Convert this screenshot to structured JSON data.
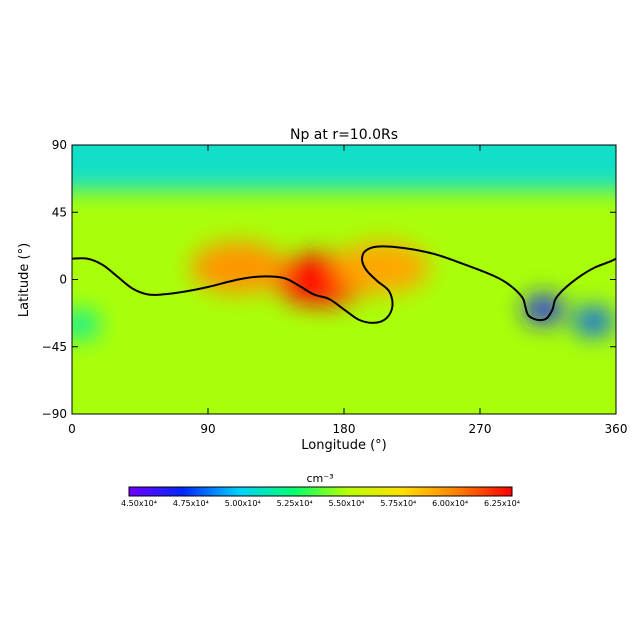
{
  "chart_data": {
    "type": "heatmap",
    "title": "Np at r=10.0Rs",
    "xlabel": "Longitude (°)",
    "ylabel": "Latitude (°)",
    "xlim": [
      0,
      360
    ],
    "ylim": [
      -90,
      90
    ],
    "x_ticks": [
      "0",
      "90",
      "180",
      "270",
      "360"
    ],
    "y_ticks": [
      "90",
      "45",
      "0",
      "−45",
      "−90"
    ],
    "colorbar": {
      "unit_label": "cm⁻³",
      "range": [
        45000,
        63750
      ],
      "tick_labels": [
        "4.50x10⁴",
        "4.75x10⁴",
        "5.00x10⁴",
        "5.25x10⁴",
        "5.50x10⁴",
        "5.75x10⁴",
        "6.00x10⁴",
        "6.25x10⁴"
      ],
      "colormap": [
        "#7000ff",
        "#0028ff",
        "#00d0ff",
        "#00ff70",
        "#b8ff00",
        "#ffe000",
        "#ff8000",
        "#ff0000"
      ]
    },
    "background_level": 55500,
    "features": [
      {
        "kind": "polar-band",
        "lat_range": [
          60,
          90
        ],
        "value": 51000
      },
      {
        "kind": "high-density-region",
        "lon": 165,
        "lat": 0,
        "value": 63500
      },
      {
        "kind": "high-density-region",
        "lon": 110,
        "lat": 8,
        "value": 60500
      },
      {
        "kind": "high-density-region",
        "lon": 205,
        "lat": 8,
        "value": 60000
      },
      {
        "kind": "low-density-region",
        "lon": 312,
        "lat": -20,
        "value": 47000
      },
      {
        "kind": "low-density-region",
        "lon": 345,
        "lat": -28,
        "value": 48500
      },
      {
        "kind": "low-density-region",
        "lon": 5,
        "lat": -30,
        "value": 52000
      }
    ],
    "neutral_line": [
      [
        0,
        14
      ],
      [
        10,
        14
      ],
      [
        20,
        10
      ],
      [
        30,
        2
      ],
      [
        40,
        -6
      ],
      [
        50,
        -10
      ],
      [
        60,
        -10
      ],
      [
        75,
        -8
      ],
      [
        90,
        -5
      ],
      [
        110,
        0
      ],
      [
        125,
        2
      ],
      [
        140,
        1
      ],
      [
        150,
        -4
      ],
      [
        160,
        -10
      ],
      [
        170,
        -13
      ],
      [
        180,
        -20
      ],
      [
        190,
        -27
      ],
      [
        200,
        -29
      ],
      [
        208,
        -26
      ],
      [
        212,
        -18
      ],
      [
        210,
        -8
      ],
      [
        202,
        -1
      ],
      [
        195,
        6
      ],
      [
        192,
        13
      ],
      [
        194,
        19
      ],
      [
        202,
        22
      ],
      [
        220,
        21
      ],
      [
        240,
        17
      ],
      [
        260,
        10
      ],
      [
        280,
        2
      ],
      [
        290,
        -4
      ],
      [
        298,
        -12
      ],
      [
        300,
        -18
      ],
      [
        302,
        -24
      ],
      [
        308,
        -27
      ],
      [
        314,
        -26
      ],
      [
        318,
        -20
      ],
      [
        320,
        -13
      ],
      [
        326,
        -6
      ],
      [
        336,
        2
      ],
      [
        346,
        8
      ],
      [
        356,
        12
      ],
      [
        360,
        14
      ]
    ]
  }
}
